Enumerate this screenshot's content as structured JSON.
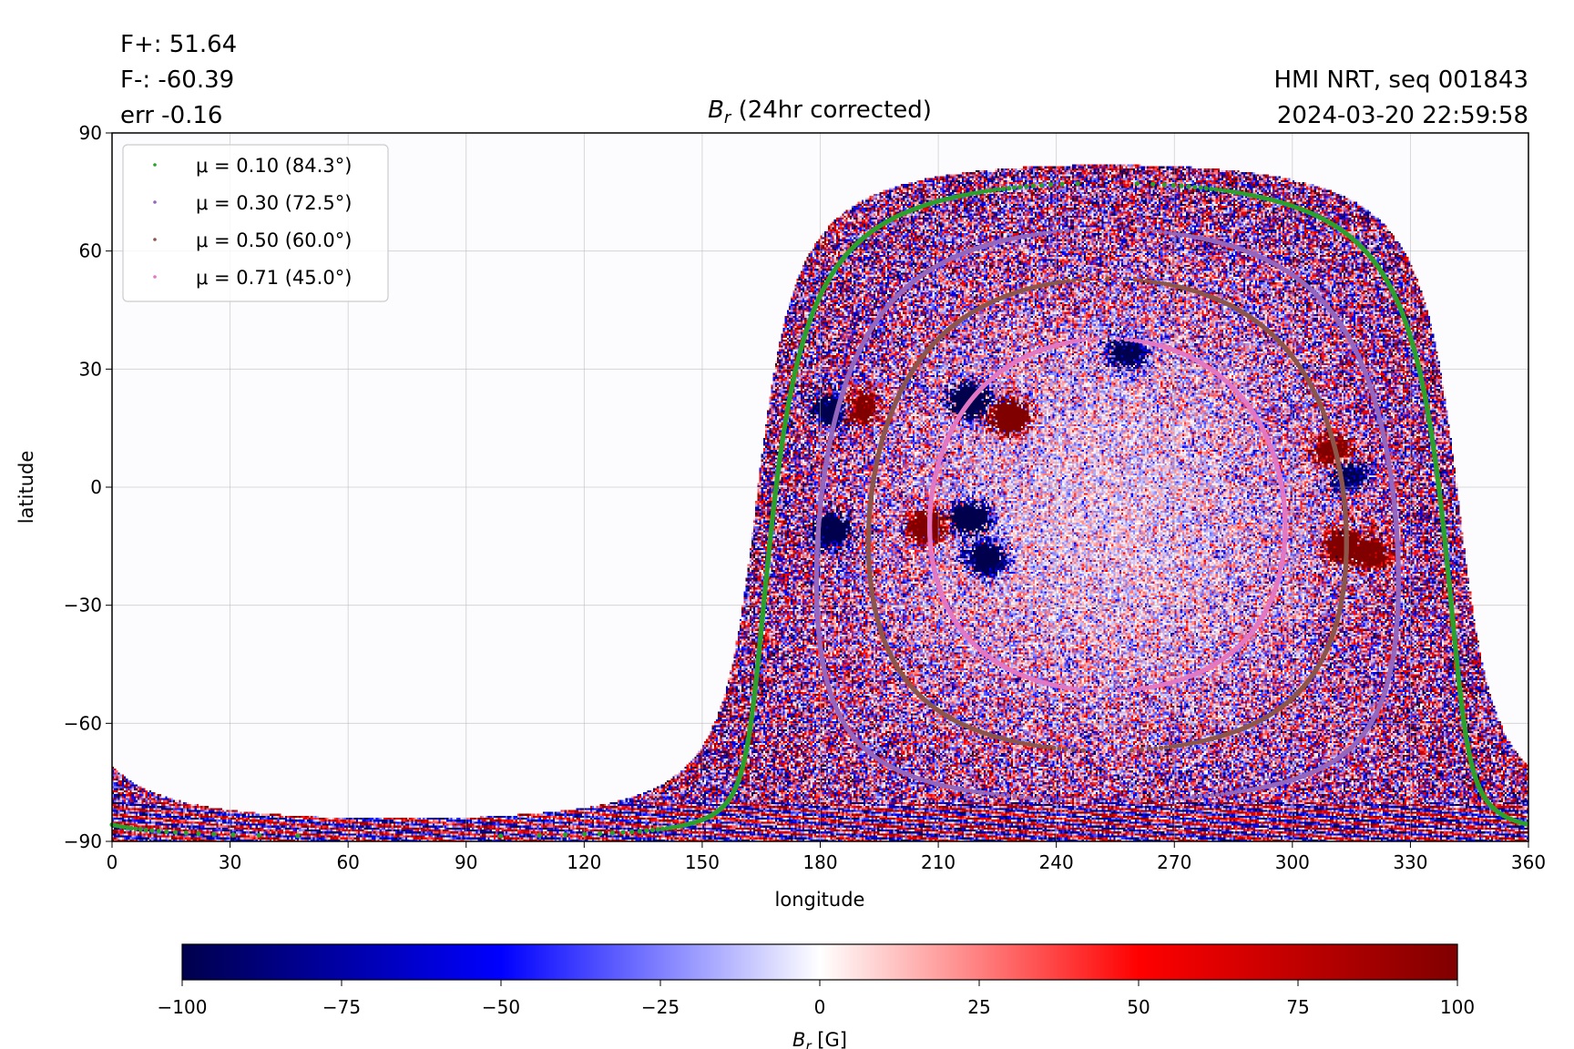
{
  "chart_data": {
    "type": "heatmap",
    "title": "B_r (24hr corrected)",
    "title_parts": {
      "symbol": "B",
      "subscript": "r",
      "rest": " (24hr corrected)"
    },
    "xlabel": "longitude",
    "ylabel": "latitude",
    "xlim": [
      0,
      360
    ],
    "ylim": [
      -90,
      90
    ],
    "xticks": [
      "0",
      "30",
      "60",
      "90",
      "120",
      "150",
      "180",
      "210",
      "240",
      "270",
      "300",
      "330",
      "360"
    ],
    "yticks": [
      "−90",
      "−60",
      "−30",
      "0",
      "30",
      "60",
      "90"
    ],
    "xtick_values": [
      0,
      30,
      60,
      90,
      120,
      150,
      180,
      210,
      240,
      270,
      300,
      330,
      360
    ],
    "ytick_values": [
      -90,
      -60,
      -30,
      0,
      30,
      60,
      90
    ],
    "grid": true,
    "colormap": "seismic",
    "disk_center_longitude": 253,
    "disk_center_latitude": -7,
    "colorbar": {
      "label_symbol": "B",
      "label_subscript": "r",
      "label_unit": " [G]",
      "range": [
        -100,
        100
      ],
      "ticks": [
        "−100",
        "−75",
        "−50",
        "−25",
        "0",
        "25",
        "50",
        "75",
        "100"
      ],
      "tick_values": [
        -100,
        -75,
        -50,
        -25,
        0,
        25,
        50,
        75,
        100
      ]
    },
    "legend": {
      "placement": "upper-left",
      "entries": [
        {
          "mu": 0.1,
          "label": "μ = 0.10 (84.3°)",
          "color": "#2ca02c"
        },
        {
          "mu": 0.3,
          "label": "μ = 0.30 (72.5°)",
          "color": "#9467bd"
        },
        {
          "mu": 0.5,
          "label": "μ = 0.50 (60.0°)",
          "color": "#8c564b"
        },
        {
          "mu": 0.71,
          "label": "μ = 0.71 (45.0°)",
          "color": "#e377c2"
        }
      ]
    },
    "annotations": {
      "fplus": "F+: 51.64",
      "fminus": "F-: -60.39",
      "err": "err -0.16",
      "source": "HMI NRT, seq 001843",
      "timestamp": "2024-03-20 22:59:58"
    }
  }
}
